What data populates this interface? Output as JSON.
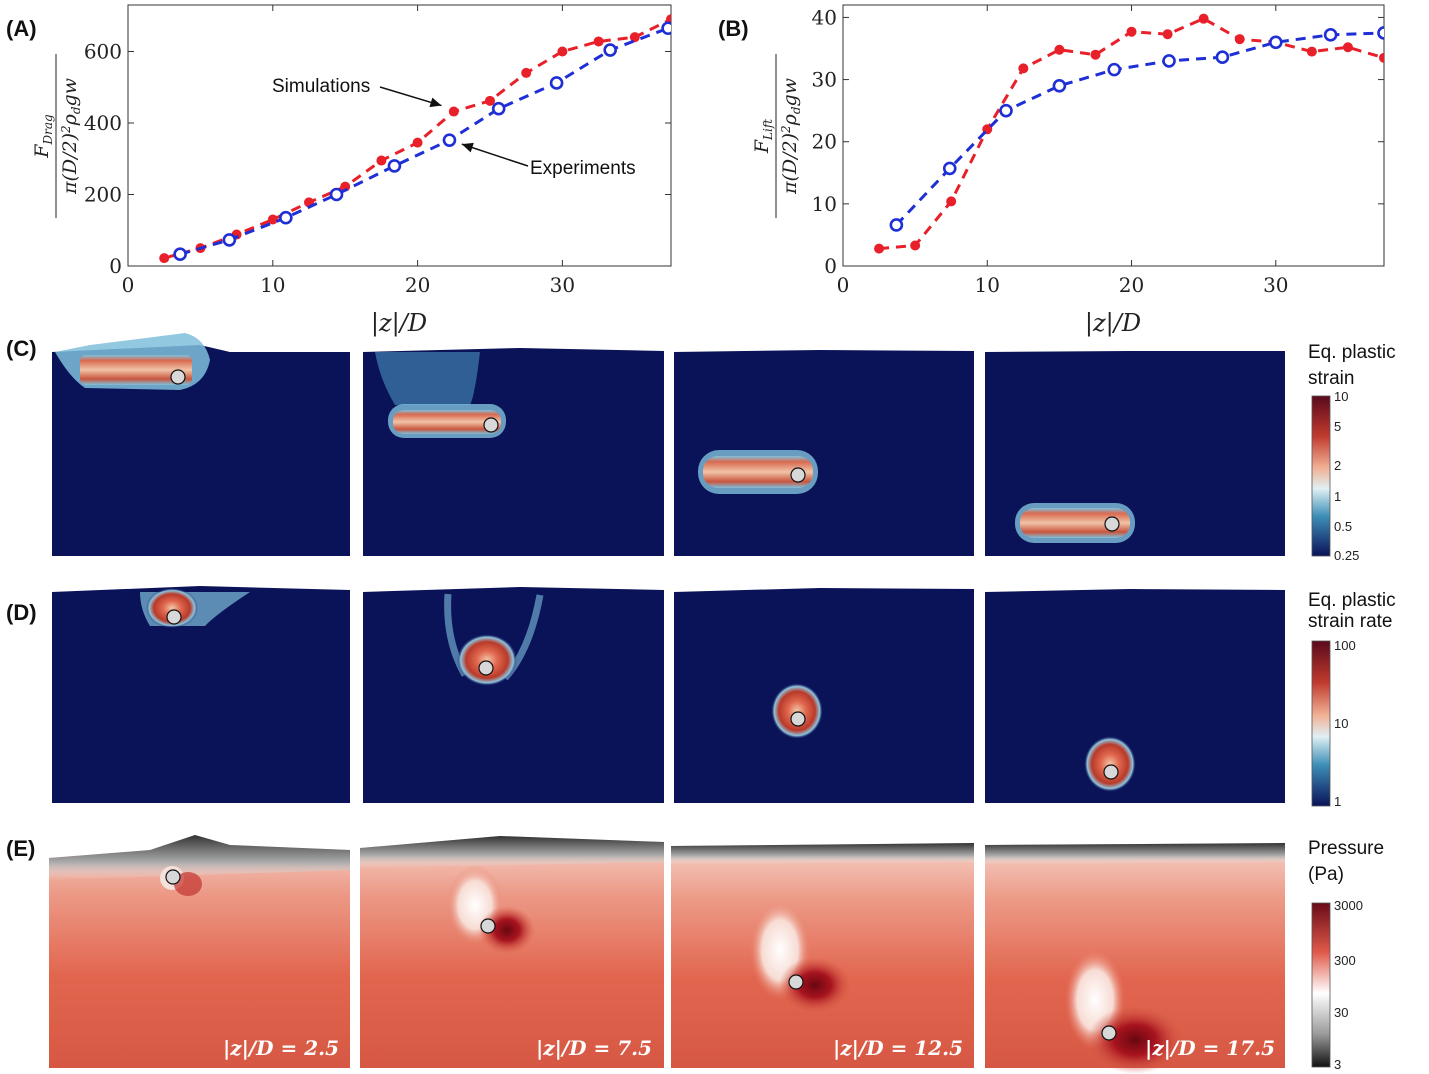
{
  "panels": {
    "A": "(A)",
    "B": "(B)",
    "C": "(C)",
    "D": "(D)",
    "E": "(E)"
  },
  "chart_data": [
    {
      "type": "line",
      "panel": "A",
      "xlabel": "|z|/D",
      "ylabel": "F_Drag / π(D/2)^2 ρ_d g w",
      "xlim": [
        0,
        37.5
      ],
      "ylim": [
        0,
        730
      ],
      "xticks": [
        0,
        10,
        20,
        30
      ],
      "yticks": [
        0,
        200,
        400,
        600
      ],
      "grid": false,
      "series": [
        {
          "name": "Simulations",
          "color": "#e8202a",
          "marker": "dot",
          "x": [
            2.5,
            5,
            7.5,
            10,
            12.5,
            15,
            17.5,
            20,
            22.5,
            25,
            27.5,
            30,
            32.5,
            35,
            37.5
          ],
          "y": [
            22,
            50,
            88,
            130,
            178,
            222,
            295,
            345,
            432,
            462,
            540,
            600,
            628,
            640,
            690
          ]
        },
        {
          "name": "Experiments",
          "color": "#1f2fd6",
          "marker": "circle",
          "x": [
            3.6,
            7,
            10.9,
            14.4,
            18.4,
            22.2,
            25.6,
            29.6,
            33.3,
            37.3
          ],
          "y": [
            33,
            73,
            135,
            200,
            280,
            352,
            440,
            512,
            604,
            665
          ]
        }
      ],
      "annotations": [
        {
          "text": "Simulations",
          "x": 22.2,
          "y": 432
        },
        {
          "text": "Experiments",
          "x": 22.5,
          "y": 352
        }
      ]
    },
    {
      "type": "line",
      "panel": "B",
      "xlabel": "|z|/D",
      "ylabel": "F_Lift / π(D/2)^2 ρ_d g w",
      "xlim": [
        0,
        37.5
      ],
      "ylim": [
        0,
        42
      ],
      "xticks": [
        0,
        10,
        20,
        30
      ],
      "yticks": [
        0,
        10,
        20,
        30,
        40
      ],
      "grid": false,
      "series": [
        {
          "color": "#e8202a",
          "marker": "dot",
          "x": [
            2.5,
            5,
            7.5,
            10,
            12.5,
            15,
            17.5,
            20,
            22.5,
            25,
            27.5,
            30,
            32.5,
            35,
            37.5
          ],
          "y": [
            2.8,
            3.3,
            10.4,
            22,
            31.8,
            34.8,
            34,
            37.7,
            37.3,
            39.8,
            36.5,
            36,
            34.5,
            35.2,
            33.5
          ]
        },
        {
          "color": "#1f2fd6",
          "marker": "circle",
          "x": [
            3.7,
            7.4,
            11.3,
            15,
            18.8,
            22.6,
            26.3,
            30,
            33.8,
            37.5
          ],
          "y": [
            6.6,
            15.7,
            25,
            29,
            31.6,
            33,
            33.6,
            36,
            37.2,
            37.5
          ]
        }
      ]
    }
  ],
  "rows": {
    "C": {
      "title_line1": "Eq. plastic",
      "title_line2": "strain",
      "ticks": [
        "10",
        "5",
        "2",
        "1",
        "0.5",
        "0.25"
      ]
    },
    "D": {
      "title_line1": "Eq. plastic",
      "title_line2": "strain rate",
      "ticks": [
        "100",
        "10",
        "1"
      ]
    },
    "E": {
      "title_line1": "Pressure",
      "title_line2": "(Pa)",
      "ticks": [
        "3000",
        "300",
        "30",
        "3"
      ]
    }
  },
  "depth_labels": [
    "|z|/D = 2.5",
    "|z|/D = 7.5",
    "|z|/D = 12.5",
    "|z|/D = 17.5"
  ],
  "colors": {
    "navy": "#0a1258",
    "red": "#c8142a",
    "pressure": "#e0574a"
  }
}
